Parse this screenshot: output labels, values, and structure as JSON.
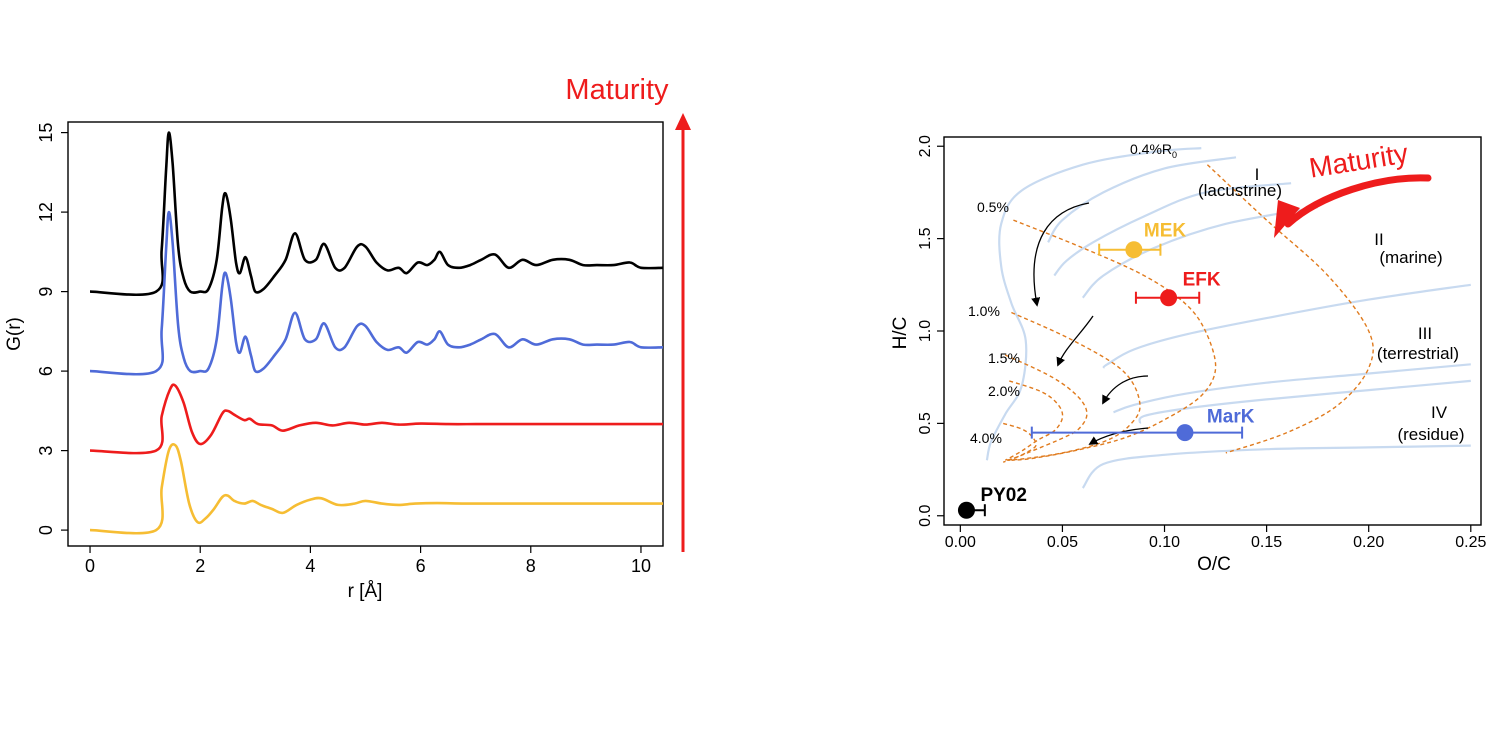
{
  "colors": {
    "black": "#000000",
    "blue": "#4f6bd8",
    "red": "#ee1c1c",
    "yellow": "#f6bd33",
    "maturity": "#ee1c1c",
    "orange_dash": "#e07b1e",
    "light_blue": "#c8daf0"
  },
  "maturity_label_left": "Maturity",
  "maturity_label_right": "Maturity",
  "chart_data": [
    {
      "type": "line",
      "title": "",
      "xlabel": "r [Å]",
      "ylabel": "G(r)",
      "xlim": [
        -0.4,
        10.4
      ],
      "ylim": [
        -0.6,
        15.4
      ],
      "xticks": [
        "0",
        "2",
        "4",
        "6",
        "8",
        "10"
      ],
      "xtick_values": [
        0,
        2,
        4,
        6,
        8,
        10
      ],
      "yticks": [
        "0",
        "3",
        "6",
        "9",
        "12",
        "15"
      ],
      "ytick_values": [
        0,
        3,
        6,
        9,
        12,
        15
      ],
      "series": [
        {
          "color": "#000000",
          "x": [
            0,
            1.2,
            1.3,
            1.38,
            1.43,
            1.5,
            1.6,
            1.7,
            1.82,
            2.0,
            2.15,
            2.3,
            2.4,
            2.46,
            2.55,
            2.65,
            2.72,
            2.82,
            2.92,
            3.0,
            3.15,
            3.35,
            3.55,
            3.72,
            3.9,
            4.1,
            4.25,
            4.45,
            4.62,
            4.85,
            5.0,
            5.2,
            5.4,
            5.6,
            5.75,
            5.95,
            6.12,
            6.25,
            6.35,
            6.5,
            6.7,
            6.9,
            7.1,
            7.35,
            7.6,
            7.85,
            8.1,
            8.4,
            8.7,
            8.95,
            9.2,
            9.5,
            9.8,
            10.0,
            10.4
          ],
          "y": [
            9.0,
            9.0,
            10.6,
            13.6,
            15.0,
            13.8,
            10.7,
            9.5,
            9.0,
            9.0,
            9.1,
            10.2,
            12.2,
            12.7,
            11.8,
            10.1,
            9.7,
            10.3,
            9.6,
            9.0,
            9.1,
            9.6,
            10.2,
            11.2,
            10.2,
            10.2,
            10.8,
            9.9,
            9.9,
            10.7,
            10.7,
            10.1,
            9.8,
            9.9,
            9.7,
            10.1,
            10.0,
            10.2,
            10.5,
            10.0,
            9.9,
            10.0,
            10.2,
            10.4,
            9.9,
            10.2,
            10.0,
            10.2,
            10.2,
            10.0,
            10.0,
            10.0,
            10.1,
            9.9,
            9.9
          ]
        },
        {
          "color": "#4f6bd8",
          "x": [
            0,
            1.2,
            1.3,
            1.38,
            1.43,
            1.5,
            1.6,
            1.7,
            1.82,
            2.0,
            2.15,
            2.3,
            2.4,
            2.46,
            2.55,
            2.65,
            2.72,
            2.82,
            2.92,
            3.0,
            3.15,
            3.35,
            3.55,
            3.72,
            3.9,
            4.1,
            4.25,
            4.45,
            4.62,
            4.85,
            5.0,
            5.2,
            5.4,
            5.6,
            5.75,
            5.95,
            6.12,
            6.25,
            6.35,
            6.5,
            6.7,
            6.9,
            7.1,
            7.35,
            7.6,
            7.85,
            8.1,
            8.4,
            8.7,
            8.95,
            9.2,
            9.5,
            9.8,
            10.0,
            10.4
          ],
          "y": [
            6.0,
            6.0,
            7.6,
            10.6,
            12.0,
            10.8,
            7.7,
            6.5,
            6.0,
            6.0,
            6.1,
            7.2,
            9.2,
            9.7,
            8.8,
            7.1,
            6.7,
            7.3,
            6.6,
            6.0,
            6.1,
            6.6,
            7.2,
            8.2,
            7.2,
            7.2,
            7.8,
            6.9,
            6.9,
            7.7,
            7.7,
            7.1,
            6.8,
            6.9,
            6.7,
            7.1,
            7.0,
            7.2,
            7.5,
            7.0,
            6.9,
            7.0,
            7.2,
            7.4,
            6.9,
            7.2,
            7.0,
            7.2,
            7.2,
            7.0,
            7.0,
            7.0,
            7.1,
            6.9,
            6.9
          ]
        },
        {
          "color": "#ee1c1c",
          "x": [
            0,
            1.2,
            1.3,
            1.45,
            1.55,
            1.7,
            1.85,
            2.0,
            2.2,
            2.4,
            2.5,
            2.62,
            2.8,
            2.9,
            3.05,
            3.3,
            3.5,
            3.8,
            4.1,
            4.4,
            4.7,
            5.0,
            5.3,
            5.6,
            6.0,
            6.5,
            7.0,
            7.5,
            8.0,
            9.0,
            10.0,
            10.4
          ],
          "y": [
            3.0,
            3.0,
            4.3,
            5.3,
            5.45,
            4.8,
            3.7,
            3.25,
            3.6,
            4.4,
            4.5,
            4.35,
            4.15,
            4.2,
            4.0,
            3.95,
            3.75,
            3.95,
            4.05,
            3.95,
            4.05,
            3.98,
            4.05,
            3.98,
            4.02,
            4.0,
            4.0,
            4.0,
            4.0,
            4.0,
            4.0,
            4.0
          ]
        },
        {
          "color": "#f6bd33",
          "x": [
            0,
            1.2,
            1.3,
            1.43,
            1.55,
            1.65,
            1.8,
            1.95,
            2.1,
            2.25,
            2.4,
            2.5,
            2.62,
            2.8,
            2.95,
            3.1,
            3.3,
            3.5,
            3.75,
            4.0,
            4.2,
            4.5,
            4.8,
            5.0,
            5.3,
            5.6,
            5.9,
            6.3,
            6.8,
            7.5,
            8.5,
            10.0,
            10.4
          ],
          "y": [
            0.0,
            0.0,
            1.6,
            3.0,
            3.2,
            2.6,
            1.0,
            0.3,
            0.45,
            0.8,
            1.25,
            1.3,
            1.1,
            1.0,
            1.1,
            0.95,
            0.8,
            0.65,
            0.95,
            1.15,
            1.2,
            0.95,
            1.0,
            1.1,
            1.0,
            0.95,
            1.0,
            1.02,
            1.0,
            1.0,
            1.0,
            1.0,
            1.0
          ]
        }
      ]
    },
    {
      "type": "scatter",
      "title": "",
      "xlabel": "O/C",
      "ylabel": "H/C",
      "xlim": [
        -0.008,
        0.255
      ],
      "ylim": [
        -0.05,
        2.05
      ],
      "xticks": [
        "0.00",
        "0.05",
        "0.10",
        "0.15",
        "0.20",
        "0.25"
      ],
      "xtick_values": [
        0,
        0.05,
        0.1,
        0.15,
        0.2,
        0.25
      ],
      "yticks": [
        "0.0",
        "0.5",
        "1.0",
        "1.5",
        "2.0"
      ],
      "ytick_values": [
        0,
        0.5,
        1.0,
        1.5,
        2.0
      ],
      "points": [
        {
          "label": "MEK",
          "x": 0.085,
          "y": 1.44,
          "xerr_low": 0.068,
          "xerr_high": 0.098,
          "color": "#f6bd33"
        },
        {
          "label": "EFK",
          "x": 0.102,
          "y": 1.18,
          "xerr_low": 0.086,
          "xerr_high": 0.117,
          "color": "#ee1c1c"
        },
        {
          "label": "MarK",
          "x": 0.11,
          "y": 0.45,
          "xerr_low": 0.035,
          "xerr_high": 0.138,
          "color": "#4f6bd8"
        },
        {
          "label": "PY02",
          "x": 0.003,
          "y": 0.03,
          "xerr_low": 0.003,
          "xerr_high": 0.012,
          "color": "#000000"
        }
      ],
      "kerogen_types": [
        {
          "numeral": "I",
          "name": "(lacustrine)"
        },
        {
          "numeral": "II",
          "name": "(marine)"
        },
        {
          "numeral": "III",
          "name": "(terrestrial)"
        },
        {
          "numeral": "IV",
          "name": "(residue)"
        }
      ],
      "isoreflectance_labels": [
        "0.4%R",
        "0.5%",
        "1.0%",
        "1.5%",
        "2.0%",
        "4.0%"
      ],
      "isoreflectance_subscript": "0",
      "isoreflectance_lines": [
        {
          "x": [
            0.121,
            0.15,
            0.18,
            0.2,
            0.2,
            0.185,
            0.16,
            0.13
          ],
          "y": [
            1.9,
            1.6,
            1.3,
            1.0,
            0.8,
            0.6,
            0.45,
            0.34
          ]
        },
        {
          "x": [
            0.026,
            0.06,
            0.09,
            0.11,
            0.12,
            0.125,
            0.118,
            0.1,
            0.08,
            0.055,
            0.035,
            0.025
          ],
          "y": [
            1.6,
            1.45,
            1.3,
            1.15,
            1.0,
            0.8,
            0.65,
            0.52,
            0.42,
            0.35,
            0.31,
            0.3
          ]
        },
        {
          "x": [
            0.025,
            0.055,
            0.08,
            0.088,
            0.082,
            0.07,
            0.05,
            0.032,
            0.023
          ],
          "y": [
            1.1,
            0.95,
            0.78,
            0.6,
            0.48,
            0.4,
            0.34,
            0.31,
            0.3
          ]
        },
        {
          "x": [
            0.022,
            0.045,
            0.058,
            0.062,
            0.058,
            0.05,
            0.035,
            0.026,
            0.022
          ],
          "y": [
            0.87,
            0.75,
            0.64,
            0.55,
            0.47,
            0.42,
            0.35,
            0.31,
            0.3
          ]
        },
        {
          "x": [
            0.024,
            0.04,
            0.048,
            0.05,
            0.046,
            0.038,
            0.03,
            0.022
          ],
          "y": [
            0.73,
            0.67,
            0.6,
            0.53,
            0.46,
            0.41,
            0.35,
            0.3
          ]
        },
        {
          "x": [
            0.021,
            0.03,
            0.035,
            0.037,
            0.032,
            0.026,
            0.021
          ],
          "y": [
            0.5,
            0.47,
            0.43,
            0.38,
            0.34,
            0.31,
            0.29
          ]
        }
      ],
      "evolution_curves": [
        {
          "x": [
            0.118,
            0.095,
            0.06,
            0.03,
            0.02,
            0.02,
            0.025,
            0.032,
            0.03,
            0.022,
            0.015,
            0.013
          ],
          "y": [
            1.99,
            1.97,
            1.9,
            1.76,
            1.58,
            1.35,
            1.15,
            0.95,
            0.7,
            0.55,
            0.4,
            0.3
          ]
        },
        {
          "x": [
            0.135,
            0.1,
            0.07,
            0.05,
            0.043
          ],
          "y": [
            1.94,
            1.88,
            1.75,
            1.6,
            1.48
          ]
        },
        {
          "x": [
            0.162,
            0.12,
            0.09,
            0.065,
            0.052,
            0.046
          ],
          "y": [
            1.8,
            1.75,
            1.62,
            1.48,
            1.38,
            1.3
          ]
        },
        {
          "x": [
            0.175,
            0.13,
            0.095,
            0.07,
            0.06
          ],
          "y": [
            1.67,
            1.58,
            1.45,
            1.3,
            1.18
          ]
        },
        {
          "x": [
            0.25,
            0.2,
            0.15,
            0.11,
            0.085,
            0.072,
            0.07
          ],
          "y": [
            1.25,
            1.17,
            1.07,
            0.98,
            0.9,
            0.82,
            0.8
          ]
        },
        {
          "x": [
            0.25,
            0.2,
            0.15,
            0.11,
            0.085,
            0.075
          ],
          "y": [
            0.82,
            0.77,
            0.72,
            0.66,
            0.6,
            0.56
          ]
        },
        {
          "x": [
            0.25,
            0.2,
            0.15,
            0.11,
            0.09,
            0.088
          ],
          "y": [
            0.73,
            0.68,
            0.63,
            0.58,
            0.54,
            0.5
          ]
        },
        {
          "x": [
            0.25,
            0.2,
            0.15,
            0.1,
            0.07,
            0.06
          ],
          "y": [
            0.38,
            0.37,
            0.36,
            0.33,
            0.28,
            0.15
          ]
        }
      ]
    }
  ]
}
